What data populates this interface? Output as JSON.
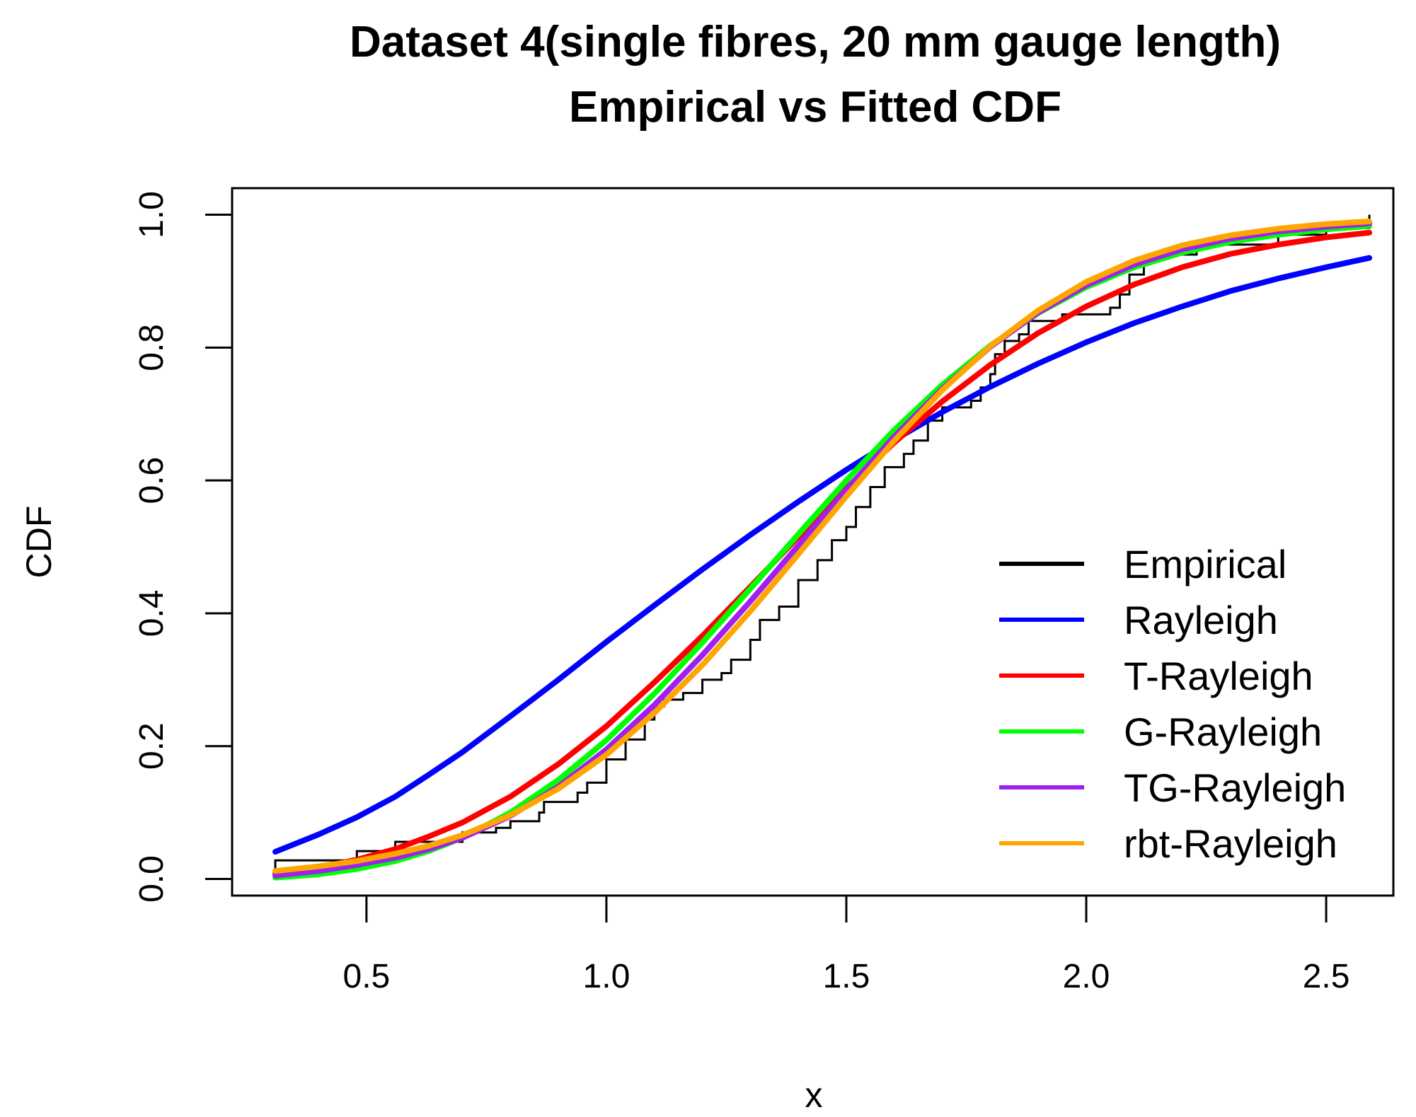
{
  "chart_data": {
    "type": "line",
    "title": "Dataset 4(single fibres, 20 mm gauge length)",
    "subtitle": "Empirical vs Fitted CDF",
    "xlabel": "x",
    "ylabel": "CDF",
    "xlim": [
      0.22,
      2.64
    ],
    "ylim": [
      -0.025,
      1.04
    ],
    "x_ticks": [
      0.5,
      1.0,
      1.5,
      2.0,
      2.5
    ],
    "x_tick_labels": [
      "0.5",
      "1.0",
      "1.5",
      "2.0",
      "2.5"
    ],
    "y_ticks": [
      0.0,
      0.2,
      0.4,
      0.6,
      0.8,
      1.0
    ],
    "y_tick_labels": [
      "0.0",
      "0.2",
      "0.4",
      "0.6",
      "0.8",
      "1.0"
    ],
    "grid": false,
    "legend_position": "bottom-right",
    "empirical": {
      "name": "Empirical",
      "color": "#000000",
      "steps": [
        [
          0.31,
          0.028
        ],
        [
          0.48,
          0.042
        ],
        [
          0.56,
          0.056
        ],
        [
          0.63,
          0.056
        ],
        [
          0.7,
          0.07
        ],
        [
          0.77,
          0.077
        ],
        [
          0.8,
          0.087
        ],
        [
          0.86,
          0.1
        ],
        [
          0.87,
          0.116
        ],
        [
          0.94,
          0.13
        ],
        [
          0.96,
          0.145
        ],
        [
          1.0,
          0.18
        ],
        [
          1.04,
          0.21
        ],
        [
          1.08,
          0.24
        ],
        [
          1.1,
          0.26
        ],
        [
          1.12,
          0.27
        ],
        [
          1.16,
          0.28
        ],
        [
          1.2,
          0.3
        ],
        [
          1.24,
          0.31
        ],
        [
          1.26,
          0.33
        ],
        [
          1.3,
          0.36
        ],
        [
          1.32,
          0.39
        ],
        [
          1.36,
          0.41
        ],
        [
          1.4,
          0.45
        ],
        [
          1.44,
          0.48
        ],
        [
          1.47,
          0.51
        ],
        [
          1.5,
          0.53
        ],
        [
          1.52,
          0.56
        ],
        [
          1.55,
          0.59
        ],
        [
          1.58,
          0.62
        ],
        [
          1.62,
          0.64
        ],
        [
          1.64,
          0.66
        ],
        [
          1.67,
          0.69
        ],
        [
          1.7,
          0.71
        ],
        [
          1.76,
          0.72
        ],
        [
          1.78,
          0.74
        ],
        [
          1.8,
          0.76
        ],
        [
          1.81,
          0.79
        ],
        [
          1.83,
          0.81
        ],
        [
          1.86,
          0.82
        ],
        [
          1.88,
          0.84
        ],
        [
          1.95,
          0.85
        ],
        [
          2.05,
          0.86
        ],
        [
          2.07,
          0.88
        ],
        [
          2.09,
          0.91
        ],
        [
          2.12,
          0.93
        ],
        [
          2.15,
          0.94
        ],
        [
          2.23,
          0.955
        ],
        [
          2.4,
          0.97
        ],
        [
          2.5,
          0.98
        ],
        [
          2.59,
          1.0
        ]
      ]
    },
    "x": [
      0.31,
      0.4,
      0.48,
      0.56,
      0.63,
      0.7,
      0.8,
      0.9,
      1.0,
      1.1,
      1.2,
      1.3,
      1.4,
      1.5,
      1.6,
      1.7,
      1.8,
      1.9,
      2.0,
      2.1,
      2.2,
      2.3,
      2.4,
      2.5,
      2.59
    ],
    "series": [
      {
        "name": "Rayleigh",
        "color": "#0000ff",
        "values": [
          0.041,
          0.067,
          0.093,
          0.124,
          0.157,
          0.191,
          0.245,
          0.3,
          0.357,
          0.412,
          0.466,
          0.518,
          0.568,
          0.616,
          0.661,
          0.703,
          0.741,
          0.776,
          0.808,
          0.837,
          0.862,
          0.885,
          0.904,
          0.921,
          0.935
        ]
      },
      {
        "name": "T-Rayleigh",
        "color": "#ff0000",
        "values": [
          0.008,
          0.017,
          0.029,
          0.045,
          0.064,
          0.085,
          0.124,
          0.173,
          0.23,
          0.296,
          0.366,
          0.44,
          0.515,
          0.588,
          0.657,
          0.719,
          0.774,
          0.822,
          0.862,
          0.895,
          0.921,
          0.941,
          0.955,
          0.966,
          0.973
        ]
      },
      {
        "name": "G-Rayleigh",
        "color": "#00ff00",
        "values": [
          0.002,
          0.007,
          0.015,
          0.027,
          0.042,
          0.062,
          0.1,
          0.149,
          0.209,
          0.279,
          0.356,
          0.437,
          0.519,
          0.6,
          0.676,
          0.744,
          0.803,
          0.852,
          0.891,
          0.921,
          0.943,
          0.959,
          0.97,
          0.978,
          0.983
        ]
      },
      {
        "name": "TG-Rayleigh",
        "color": "#a020f0",
        "values": [
          0.005,
          0.012,
          0.021,
          0.032,
          0.045,
          0.062,
          0.095,
          0.139,
          0.195,
          0.262,
          0.337,
          0.418,
          0.502,
          0.586,
          0.666,
          0.738,
          0.801,
          0.853,
          0.894,
          0.925,
          0.948,
          0.964,
          0.975,
          0.982,
          0.987
        ]
      },
      {
        "name": "rbt-Rayleigh",
        "color": "#ffa500",
        "values": [
          0.012,
          0.019,
          0.027,
          0.038,
          0.05,
          0.066,
          0.096,
          0.136,
          0.187,
          0.25,
          0.322,
          0.403,
          0.489,
          0.576,
          0.66,
          0.736,
          0.802,
          0.856,
          0.899,
          0.931,
          0.954,
          0.969,
          0.979,
          0.986,
          0.99
        ]
      }
    ]
  }
}
